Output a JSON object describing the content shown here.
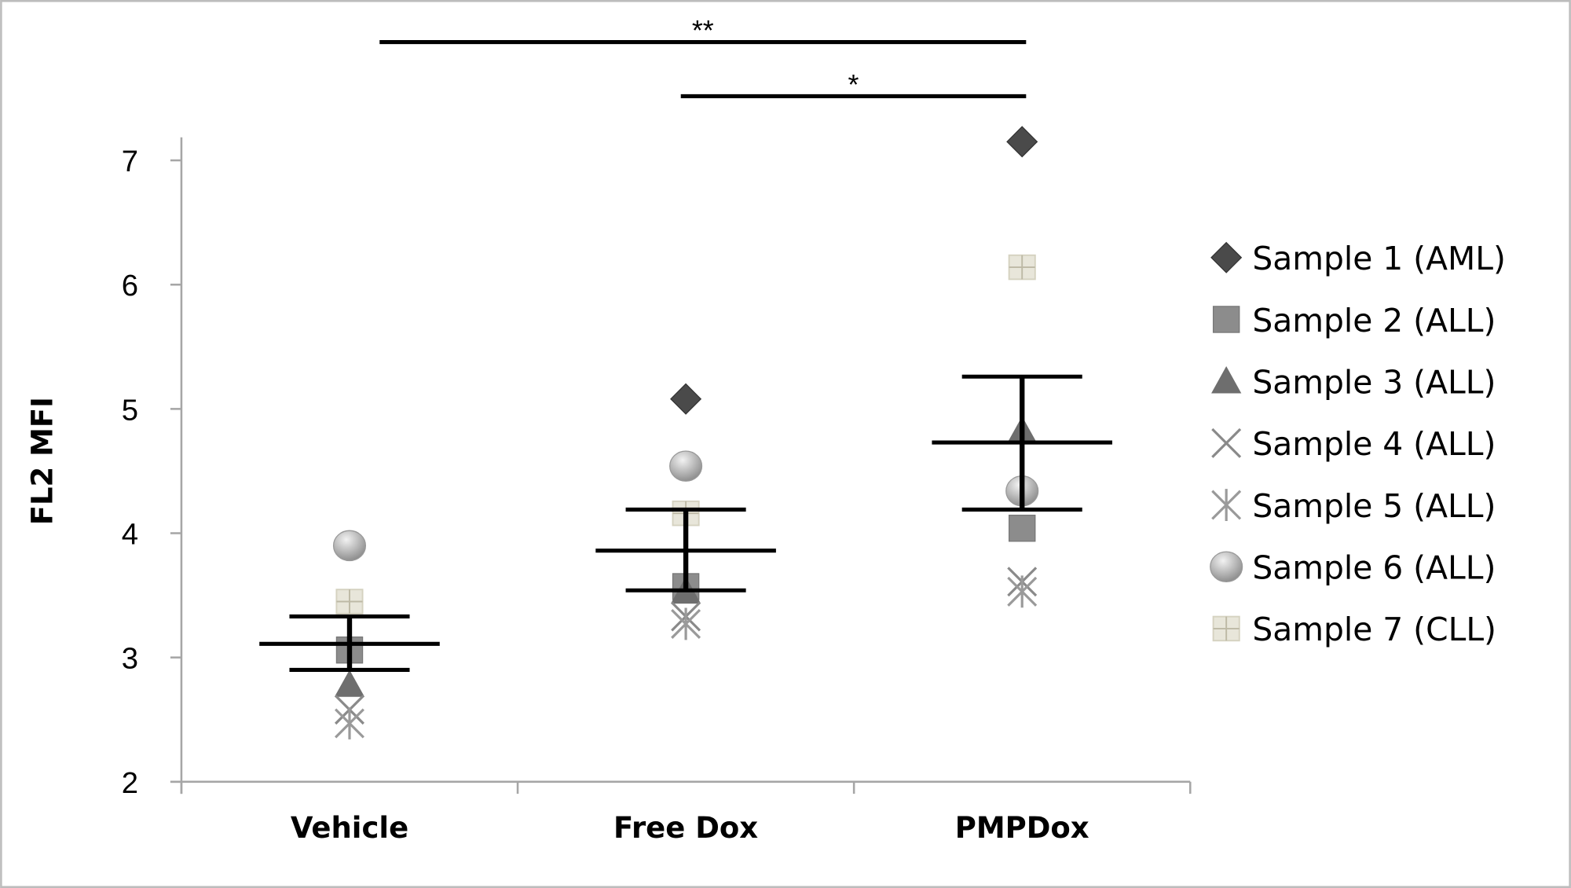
{
  "chart_data": {
    "type": "scatter",
    "title": "",
    "xlabel": "",
    "ylabel": "FL2 MFI",
    "ylim": [
      2,
      7
    ],
    "yticks": [
      "2",
      "3",
      "4",
      "5",
      "6",
      "7"
    ],
    "categories": [
      "Vehicle",
      "Free Dox",
      "PMPDox"
    ],
    "grid": false,
    "legend_position": "right",
    "series": [
      {
        "name": "Sample 1 (AML)",
        "marker": "diamond",
        "color": "#4a4a4a",
        "values": [
          null,
          5.08,
          7.15
        ]
      },
      {
        "name": "Sample 2 (ALL)",
        "marker": "square",
        "color": "#8c8c8c",
        "values": [
          3.06,
          3.57,
          4.04
        ]
      },
      {
        "name": "Sample 3 (ALL)",
        "marker": "triangle",
        "color": "#6e6e6e",
        "values": [
          2.78,
          3.53,
          4.82
        ]
      },
      {
        "name": "Sample 4 (ALL)",
        "marker": "x",
        "color": "#8a8a8a",
        "values": [
          2.58,
          3.33,
          3.61
        ]
      },
      {
        "name": "Sample 5 (ALL)",
        "marker": "asterisk",
        "color": "#9a9a9a",
        "values": [
          2.47,
          3.27,
          3.53
        ]
      },
      {
        "name": "Sample 6 (ALL)",
        "marker": "circle",
        "color": "#b0b0b0",
        "values": [
          3.9,
          4.54,
          4.34
        ]
      },
      {
        "name": "Sample 7 (CLL)",
        "marker": "grid-square",
        "color": "#e8e6da",
        "values": [
          3.45,
          4.16,
          6.14
        ]
      }
    ],
    "summary": {
      "mean": [
        3.11,
        3.86,
        4.73
      ],
      "upper": [
        3.33,
        4.19,
        5.26
      ],
      "lower": [
        2.9,
        3.54,
        4.19
      ]
    },
    "significance": [
      {
        "from": "Vehicle",
        "to": "PMPDox",
        "label": "**"
      },
      {
        "from": "Free Dox",
        "to": "PMPDox",
        "label": "*"
      }
    ]
  }
}
